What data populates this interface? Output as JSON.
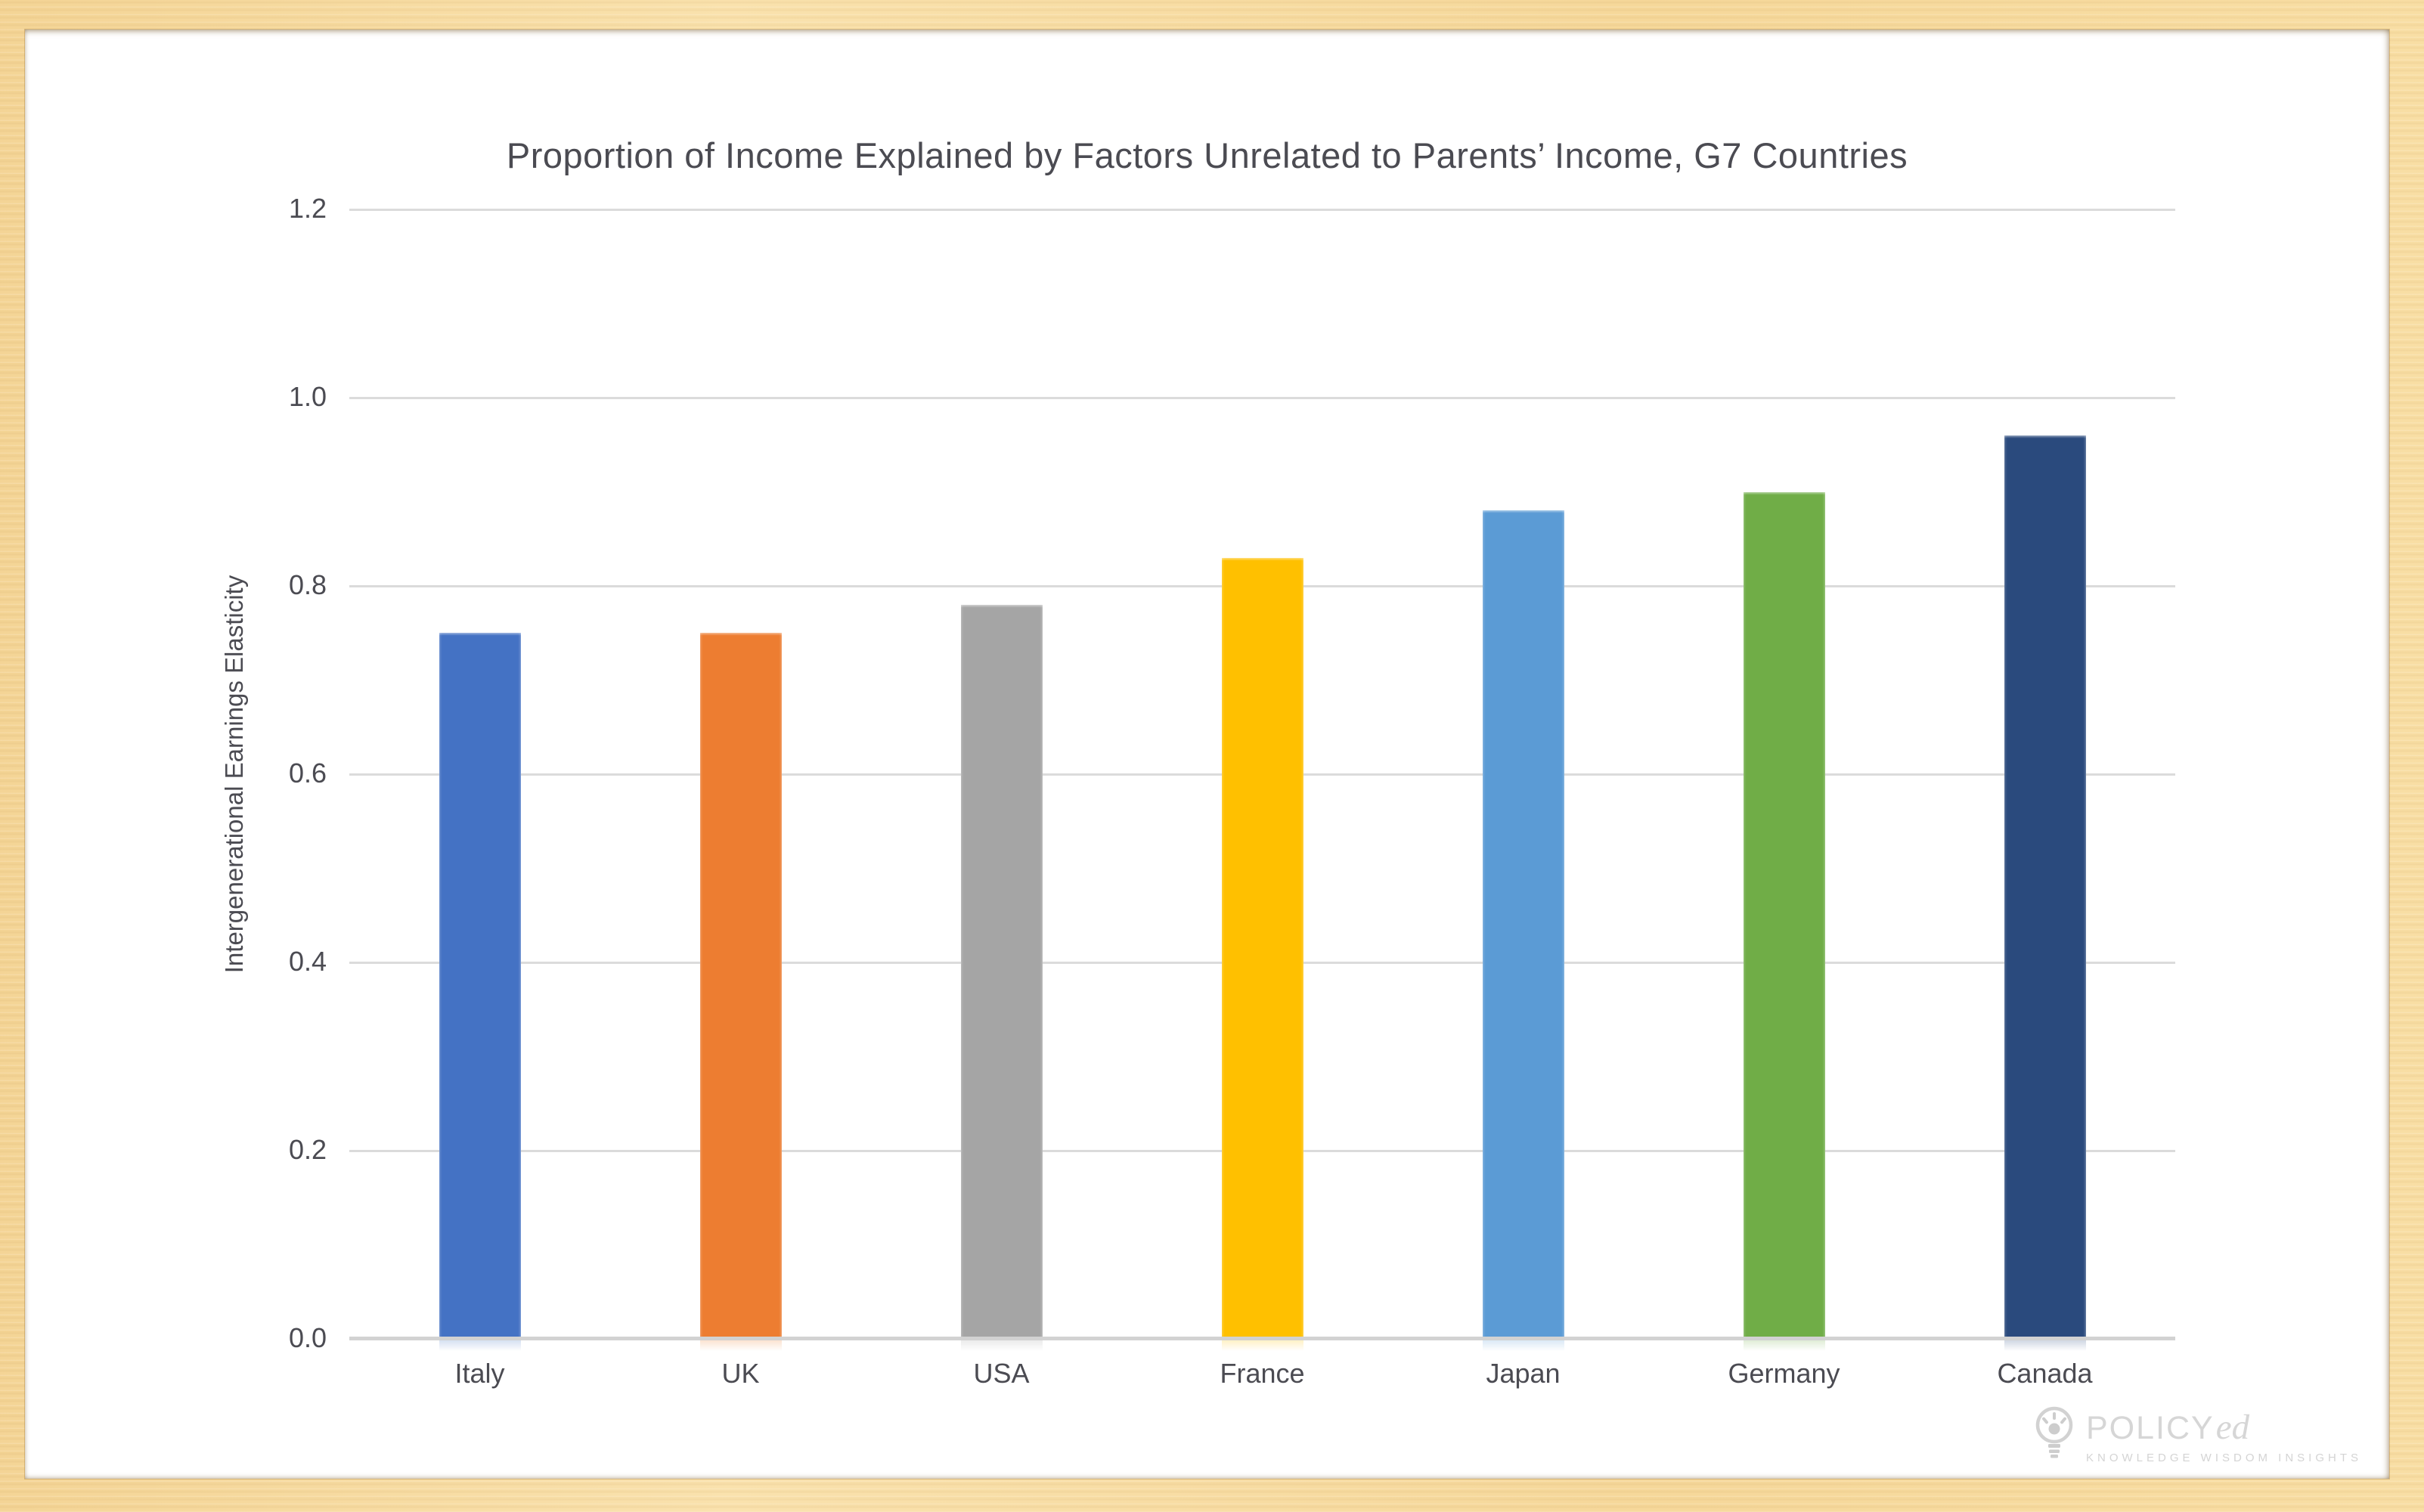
{
  "frame": {
    "background_color": "#F8DCA0",
    "panel_color": "#FFFFFF"
  },
  "chart_data": {
    "type": "bar",
    "title": "Proportion of Income Explained by Factors Unrelated to Parents’ Income, G7 Countries",
    "ylabel": "Intergenerational Earnings Elasticity",
    "xlabel": "",
    "categories": [
      "Italy",
      "UK",
      "USA",
      "France",
      "Japan",
      "Germany",
      "Canada"
    ],
    "values": [
      0.75,
      0.75,
      0.78,
      0.83,
      0.88,
      0.9,
      0.96
    ],
    "bar_colors": [
      "#4472C4",
      "#ED7D31",
      "#A5A5A5",
      "#FFC000",
      "#5B9BD5",
      "#70AD47",
      "#2A4A7D"
    ],
    "ylim": [
      0,
      1.2
    ],
    "yticks": [
      0,
      0.2,
      0.4,
      0.6,
      0.8,
      1.0,
      1.2
    ],
    "ytick_labels": [
      "0.0",
      "0.2",
      "0.4",
      "0.6",
      "0.8",
      "1.0",
      "1.2"
    ],
    "grid": true,
    "gridline_color": "#DBDBDB",
    "baseline_color": "#D2D2D2",
    "text_color": "#4B4B52",
    "legend": "none"
  },
  "logo": {
    "icon": "lightbulb-icon",
    "brand_main": "POLICY",
    "brand_suffix": "ed",
    "tagline": "KNOWLEDGE WISDOM INSIGHTS",
    "color": "#D6D6D6"
  }
}
